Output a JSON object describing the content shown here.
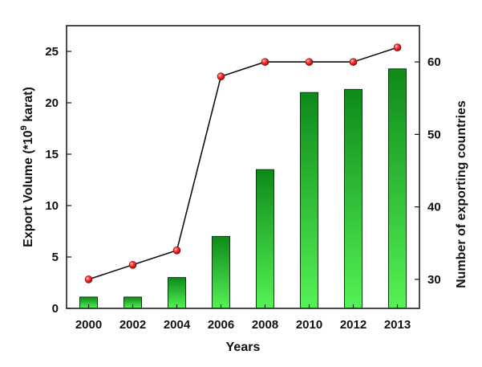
{
  "chart_data": {
    "type": "bar+line",
    "title": "",
    "xlabel": "Years",
    "ylabel_left_main": "Export Volume (*10",
    "ylabel_left_sup": "9",
    "ylabel_left_tail": " karat)",
    "ylabel_right": "Number of exporting countries",
    "categories": [
      "2000",
      "2002",
      "2004",
      "2006",
      "2008",
      "2010",
      "2012",
      "2013"
    ],
    "left_axis": {
      "ylim": [
        0,
        27.5
      ],
      "ticks": [
        "0",
        "5",
        "10",
        "15",
        "20",
        "25"
      ]
    },
    "right_axis": {
      "ylim": [
        26,
        65
      ],
      "ticks": [
        "30",
        "40",
        "50",
        "60"
      ]
    },
    "series": [
      {
        "name": "Export Volume",
        "axis": "left",
        "kind": "bar",
        "values": [
          1.1,
          1.1,
          3.0,
          7.0,
          13.5,
          21.0,
          21.3,
          23.3
        ]
      },
      {
        "name": "Number of exporting countries",
        "axis": "right",
        "kind": "line",
        "values": [
          30,
          32,
          34,
          58,
          60,
          60,
          60,
          62
        ]
      }
    ],
    "colors": {
      "bar_top": "#0d8a1a",
      "bar_bottom": "#55f255",
      "line": "#111111",
      "marker": "#e02020"
    }
  }
}
